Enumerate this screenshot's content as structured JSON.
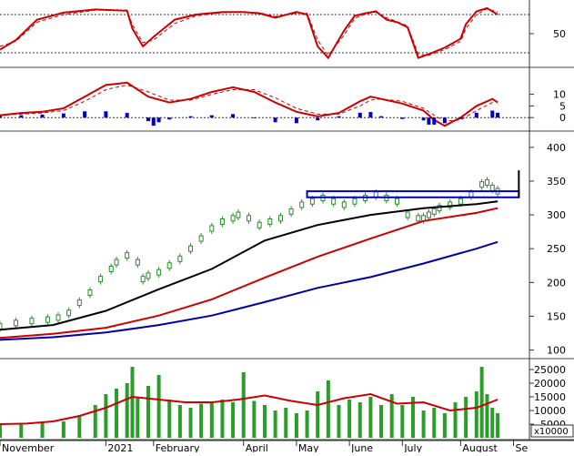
{
  "chart_data": {
    "type": "line",
    "x_labels": [
      "November",
      "2021",
      "February",
      "April",
      "May",
      "June",
      "July",
      "August",
      "Se"
    ],
    "x_range": [
      0,
      100
    ],
    "panels": [
      {
        "name": "stochastic",
        "ylim": [
          0,
          100
        ],
        "ticks": [
          50
        ],
        "ref_lines": [
          80,
          20
        ],
        "series": [
          {
            "color": "#cc0000",
            "style": "solid",
            "x": [
              0,
              3,
              7,
              12,
              18,
              24,
              25,
              27,
              29,
              33,
              37,
              42,
              46,
              49,
              52,
              56,
              58,
              60,
              62,
              65,
              67,
              69,
              71,
              73,
              75,
              77,
              79,
              81,
              84,
              87,
              88,
              90,
              92,
              94
            ],
            "y": [
              25,
              40,
              72,
              83,
              88,
              86,
              58,
              30,
              45,
              72,
              80,
              84,
              84,
              82,
              75,
              84,
              80,
              30,
              12,
              55,
              78,
              82,
              85,
              72,
              68,
              60,
              12,
              18,
              28,
              42,
              65,
              85,
              90,
              80
            ]
          },
          {
            "color": "#cc0000",
            "style": "dashed",
            "x": [
              0,
              3,
              7,
              12,
              18,
              24,
              25,
              27,
              29,
              33,
              37,
              42,
              46,
              49,
              52,
              56,
              58,
              60,
              62,
              65,
              67,
              69,
              71,
              73,
              75,
              77,
              79,
              81,
              84,
              87,
              88,
              90,
              92,
              94
            ],
            "y": [
              30,
              38,
              68,
              80,
              87,
              87,
              64,
              36,
              40,
              66,
              78,
              83,
              84,
              83,
              77,
              82,
              82,
              40,
              16,
              48,
              74,
              81,
              84,
              75,
              69,
              62,
              18,
              16,
              25,
              38,
              58,
              80,
              89,
              84
            ]
          }
        ]
      },
      {
        "name": "macd",
        "ylim": [
          -5,
          20
        ],
        "ticks": [
          0,
          5,
          10
        ],
        "zero": 0,
        "series": [
          {
            "color": "#cc0000",
            "style": "solid",
            "x": [
              0,
              4,
              8,
              12,
              16,
              20,
              24,
              28,
              32,
              36,
              40,
              44,
              48,
              52,
              56,
              60,
              64,
              68,
              70,
              72,
              76,
              80,
              82,
              84,
              87,
              90,
              93,
              94
            ],
            "y": [
              1,
              2,
              2.5,
              4,
              9,
              14,
              15,
              9,
              6.5,
              8,
              11,
              13,
              11,
              6.5,
              2.5,
              0.5,
              2,
              7,
              9,
              8,
              6,
              3,
              -1,
              -3.5,
              0,
              5,
              8,
              6.5
            ]
          },
          {
            "color": "#cc0000",
            "style": "dashed",
            "x": [
              0,
              4,
              8,
              12,
              16,
              20,
              24,
              28,
              32,
              36,
              40,
              44,
              48,
              52,
              56,
              60,
              64,
              68,
              70,
              72,
              76,
              80,
              82,
              84,
              87,
              90,
              93,
              94
            ],
            "y": [
              1,
              1.5,
              2,
              3,
              7,
              12,
              14,
              11,
              7.5,
              7.5,
              10,
              12,
              12,
              8.5,
              4,
              1.5,
              1.5,
              5,
              7.5,
              8,
              7,
              4,
              1,
              -1.5,
              -1,
              3,
              6.5,
              7
            ]
          },
          {
            "color": "#0000cc",
            "style": "bars",
            "x": [
              0,
              4,
              8,
              12,
              16,
              20,
              24,
              28,
              29,
              30,
              32,
              36,
              40,
              44,
              48,
              52,
              56,
              60,
              64,
              68,
              70,
              72,
              76,
              80,
              81,
              82,
              84,
              87,
              90,
              93,
              94
            ],
            "y": [
              0.8,
              1,
              1.3,
              1.8,
              2.7,
              2.7,
              2,
              -1.5,
              -3.5,
              -2,
              -0.8,
              0.6,
              1,
              1.5,
              -0.3,
              -2,
              -2.4,
              -1.2,
              0.6,
              2.1,
              2.4,
              0.6,
              -0.6,
              -1.2,
              -3,
              -3,
              -2.4,
              -0.6,
              2.1,
              3,
              2.1
            ]
          }
        ]
      },
      {
        "name": "price",
        "ylim": [
          90,
          420
        ],
        "ticks": [
          100,
          150,
          200,
          250,
          300,
          350,
          400
        ],
        "series": [
          {
            "color": "#2e8b2e",
            "style": "candles",
            "x": [
              0,
              3,
              6,
              9,
              11,
              13,
              15,
              17,
              19,
              21,
              22,
              24,
              26,
              27,
              28,
              30,
              32,
              34,
              36,
              38,
              40,
              42,
              44,
              45,
              47,
              49,
              51,
              53,
              55,
              57,
              59,
              61,
              63,
              65,
              67,
              69,
              71,
              73,
              75,
              77,
              79,
              80,
              81,
              82,
              83,
              85,
              87,
              89,
              91,
              92,
              93,
              94
            ],
            "y": [
              135,
              140,
              143,
              145,
              148,
              155,
              170,
              185,
              205,
              220,
              230,
              240,
              230,
              205,
              210,
              215,
              225,
              235,
              250,
              265,
              280,
              290,
              295,
              300,
              295,
              285,
              290,
              295,
              305,
              315,
              320,
              325,
              320,
              315,
              320,
              325,
              330,
              325,
              320,
              300,
              295,
              295,
              300,
              305,
              310,
              315,
              320,
              330,
              345,
              348,
              340,
              335
            ]
          },
          {
            "color": "#000000",
            "style": "solid",
            "x": [
              0,
              10,
              20,
              30,
              40,
              50,
              60,
              70,
              80,
              90,
              94
            ],
            "y": [
              130,
              137,
              158,
              190,
              220,
              262,
              285,
              300,
              310,
              316,
              320
            ]
          },
          {
            "color": "#cc0000",
            "style": "solid",
            "x": [
              0,
              10,
              20,
              30,
              40,
              50,
              60,
              70,
              80,
              90,
              94
            ],
            "y": [
              118,
              124,
              133,
              151,
              175,
              207,
              238,
              265,
              291,
              303,
              310
            ]
          },
          {
            "color": "#0000aa",
            "style": "solid",
            "x": [
              0,
              10,
              20,
              30,
              40,
              50,
              60,
              70,
              80,
              90,
              94
            ],
            "y": [
              115,
              119,
              126,
              137,
              151,
              171,
              192,
              208,
              228,
              250,
              260
            ]
          }
        ],
        "annotations": [
          {
            "type": "rectangle",
            "color": "#0000cc",
            "x": [
              58,
              98
            ],
            "y": [
              326,
              335
            ]
          },
          {
            "type": "vline",
            "color": "#000000",
            "x": 98,
            "y": [
              325,
              366
            ]
          }
        ]
      },
      {
        "name": "volume",
        "ylim": [
          0,
          28000
        ],
        "ticks": [
          5000,
          10000,
          15000,
          20000,
          25000
        ],
        "multiplier_label": "x10000",
        "series": [
          {
            "color": "#2a9d2a",
            "style": "bars",
            "x": [
              0,
              4,
              8,
              12,
              15,
              18,
              20,
              22,
              24,
              25,
              26,
              28,
              30,
              32,
              34,
              36,
              38,
              40,
              42,
              44,
              46,
              48,
              50,
              52,
              54,
              56,
              58,
              60,
              62,
              64,
              66,
              68,
              70,
              72,
              74,
              76,
              78,
              80,
              82,
              84,
              86,
              88,
              90,
              91,
              92,
              93,
              94
            ],
            "y": [
              5000,
              4800,
              5500,
              6000,
              8000,
              12000,
              16000,
              18000,
              20000,
              26000,
              15000,
              19000,
              23000,
              14000,
              12000,
              11000,
              12500,
              13000,
              14000,
              13000,
              24000,
              13500,
              12000,
              10000,
              11000,
              9000,
              10000,
              17000,
              21000,
              12000,
              14000,
              13000,
              15000,
              12000,
              16000,
              12000,
              15000,
              10000,
              11000,
              9000,
              13000,
              15000,
              17000,
              26000,
              16000,
              11000,
              9000
            ]
          },
          {
            "color": "#cc0000",
            "style": "solid",
            "x": [
              0,
              5,
              10,
              15,
              20,
              25,
              30,
              35,
              40,
              45,
              50,
              55,
              60,
              65,
              70,
              75,
              80,
              85,
              90,
              94
            ],
            "y": [
              5000,
              5200,
              6000,
              8000,
              11000,
              15000,
              14000,
              13000,
              13000,
              14000,
              15500,
              13500,
              12000,
              14500,
              16000,
              12500,
              13000,
              10000,
              11000,
              14000
            ]
          }
        ]
      }
    ]
  }
}
